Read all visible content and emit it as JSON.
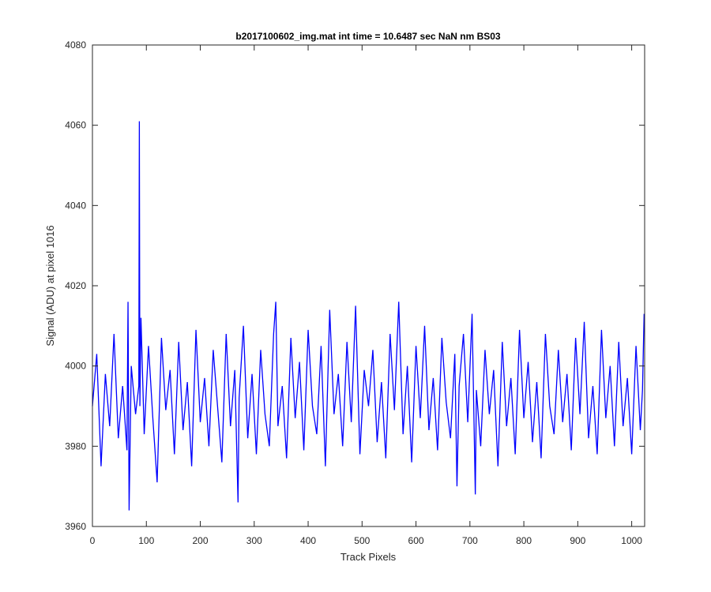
{
  "chart_data": {
    "type": "line",
    "title": "b2017100602_img.mat int time = 10.6487 sec  NaN nm BS03",
    "x_label": "Track Pixels",
    "y_label": "Signal (ADU) at pixel 1016",
    "xlim": [
      0,
      1024
    ],
    "ylim": [
      3960,
      4080
    ],
    "xticks": [
      0,
      100,
      200,
      300,
      400,
      500,
      600,
      700,
      800,
      900,
      1000
    ],
    "yticks": [
      3960,
      3980,
      4000,
      4020,
      4040,
      4060,
      4080
    ],
    "grid": false,
    "series": [
      {
        "color": "#0000ff",
        "x": [
          0,
          8,
          16,
          24,
          32,
          40,
          48,
          56,
          64,
          66,
          68,
          72,
          80,
          86,
          87,
          88,
          90,
          96,
          104,
          112,
          120,
          128,
          136,
          144,
          152,
          160,
          168,
          176,
          184,
          192,
          200,
          208,
          216,
          224,
          232,
          240,
          248,
          256,
          264,
          270,
          272,
          280,
          288,
          296,
          304,
          312,
          320,
          328,
          336,
          340,
          344,
          352,
          360,
          368,
          376,
          384,
          392,
          400,
          408,
          416,
          424,
          432,
          440,
          448,
          456,
          464,
          472,
          480,
          488,
          496,
          504,
          512,
          520,
          528,
          536,
          544,
          552,
          560,
          568,
          576,
          584,
          592,
          600,
          608,
          616,
          624,
          632,
          640,
          648,
          656,
          664,
          672,
          676,
          680,
          688,
          696,
          704,
          710,
          712,
          720,
          728,
          736,
          744,
          752,
          760,
          768,
          776,
          784,
          792,
          800,
          808,
          816,
          824,
          832,
          840,
          848,
          856,
          864,
          872,
          880,
          888,
          896,
          904,
          912,
          920,
          928,
          936,
          944,
          952,
          960,
          968,
          976,
          984,
          992,
          1000,
          1008,
          1016,
          1020,
          1023
        ],
        "values": [
          3990,
          4003,
          3975,
          3998,
          3985,
          4008,
          3982,
          3995,
          3979,
          4016,
          3964,
          4000,
          3988,
          3995,
          4061,
          3990,
          4012,
          3983,
          4005,
          3987,
          3971,
          4007,
          3989,
          3999,
          3978,
          4006,
          3984,
          3996,
          3975,
          4009,
          3986,
          3997,
          3980,
          4004,
          3990,
          3976,
          4008,
          3985,
          3999,
          3966,
          3992,
          4010,
          3982,
          3998,
          3978,
          4004,
          3988,
          3980,
          4008,
          4016,
          3985,
          3995,
          3977,
          4007,
          3987,
          4001,
          3979,
          4009,
          3990,
          3983,
          4005,
          3975,
          4014,
          3988,
          3998,
          3980,
          4006,
          3986,
          4015,
          3978,
          3999,
          3990,
          4004,
          3981,
          3996,
          3977,
          4008,
          3989,
          4016,
          3983,
          4000,
          3976,
          4005,
          3987,
          4010,
          3984,
          3997,
          3979,
          4007,
          3991,
          3982,
          4003,
          3970,
          3995,
          4008,
          3986,
          4013,
          3968,
          3994,
          3980,
          4004,
          3988,
          3999,
          3975,
          4006,
          3985,
          3997,
          3978,
          4009,
          3987,
          4001,
          3981,
          3996,
          3977,
          4008,
          3990,
          3983,
          4004,
          3986,
          3998,
          3979,
          4007,
          3988,
          4011,
          3982,
          3995,
          3978,
          4009,
          3987,
          4000,
          3980,
          4006,
          3985,
          3997,
          3978,
          4005,
          3984,
          3994,
          4013
        ]
      }
    ]
  }
}
